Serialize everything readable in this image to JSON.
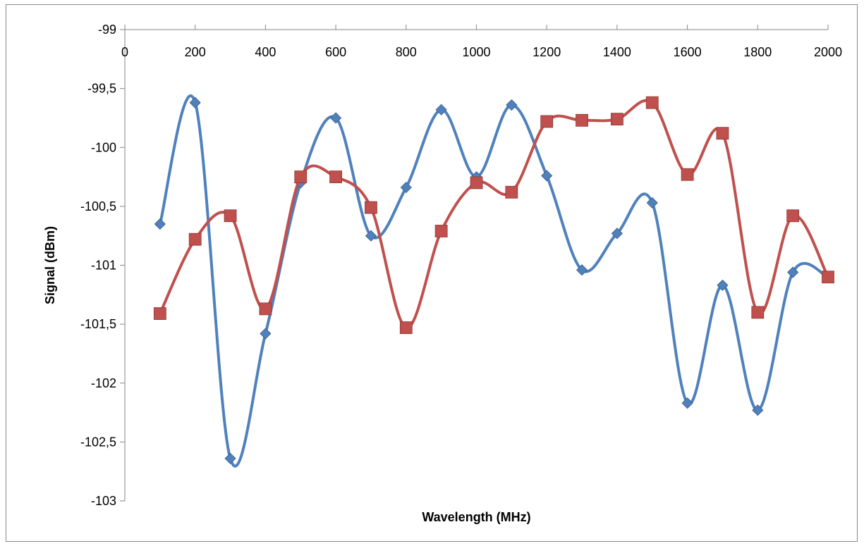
{
  "chart_data": {
    "type": "line",
    "title": "",
    "xlabel": "Wavelength (MHz)",
    "ylabel": "Signal (dBm)",
    "xlim": [
      0,
      2000
    ],
    "ylim": [
      -103,
      -99
    ],
    "x_ticks": [
      0,
      200,
      400,
      600,
      800,
      1000,
      1200,
      1400,
      1600,
      1800,
      2000
    ],
    "x_tick_labels": [
      "0",
      "200",
      "400",
      "600",
      "800",
      "1000",
      "1200",
      "1400",
      "1600",
      "1800",
      "2000"
    ],
    "y_ticks": [
      -99,
      -99.5,
      -100,
      -100.5,
      -101,
      -101.5,
      -102,
      -102.5,
      -103
    ],
    "y_tick_labels": [
      "-99",
      "-99,5",
      "-100",
      "-100,5",
      "-101",
      "-101,5",
      "-102",
      "-102,5",
      "-103"
    ],
    "x_axis_position": "top",
    "smoothed": true,
    "grid": false,
    "legend": "none",
    "x": [
      100,
      200,
      300,
      400,
      500,
      600,
      700,
      800,
      900,
      1000,
      1100,
      1200,
      1300,
      1400,
      1500,
      1600,
      1700,
      1800,
      1900,
      2000
    ],
    "series": [
      {
        "color": "#4f81bd",
        "marker": "diamond",
        "values": [
          -100.65,
          -99.62,
          -102.64,
          -101.58,
          -100.3,
          -99.75,
          -100.75,
          -100.34,
          -99.68,
          -100.25,
          -99.64,
          -100.24,
          -101.04,
          -100.73,
          -100.47,
          -102.17,
          -101.17,
          -102.23,
          -101.06,
          -101.1
        ]
      },
      {
        "color": "#c0504d",
        "marker": "square",
        "values": [
          -101.41,
          -100.78,
          -100.58,
          -101.37,
          -100.25,
          -100.25,
          -100.51,
          -101.53,
          -100.71,
          -100.3,
          -100.38,
          -99.78,
          -99.77,
          -99.76,
          -99.62,
          -100.23,
          -99.88,
          -101.4,
          -100.58,
          -101.1
        ]
      }
    ]
  }
}
